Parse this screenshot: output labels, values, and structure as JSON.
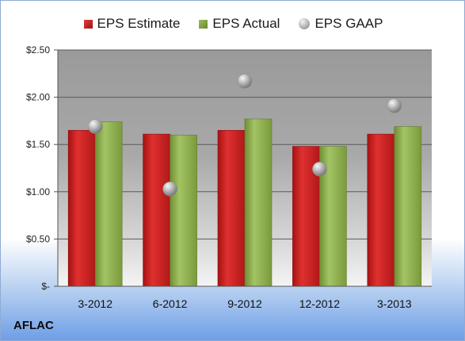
{
  "brand": "AFLAC",
  "chart_data": {
    "type": "bar",
    "categories": [
      "3-2012",
      "6-2012",
      "9-2012",
      "12-2012",
      "3-2013"
    ],
    "series": [
      {
        "name": "EPS Estimate",
        "kind": "bar",
        "color": "#c8201f",
        "values": [
          1.65,
          1.61,
          1.65,
          1.48,
          1.61
        ]
      },
      {
        "name": "EPS Actual",
        "kind": "bar",
        "color": "#8fb050",
        "values": [
          1.74,
          1.6,
          1.77,
          1.48,
          1.69
        ]
      },
      {
        "name": "EPS GAAP",
        "kind": "scatter",
        "color": "#b0b0b0",
        "values": [
          1.69,
          1.03,
          2.17,
          1.24,
          1.91
        ]
      }
    ],
    "yticks": [
      "$-",
      "$0.50",
      "$1.00",
      "$1.50",
      "$2.00",
      "$2.50"
    ],
    "ylim": [
      0,
      2.5
    ],
    "grid": true,
    "legend_position": "top",
    "title": "",
    "xlabel": "",
    "ylabel": ""
  }
}
